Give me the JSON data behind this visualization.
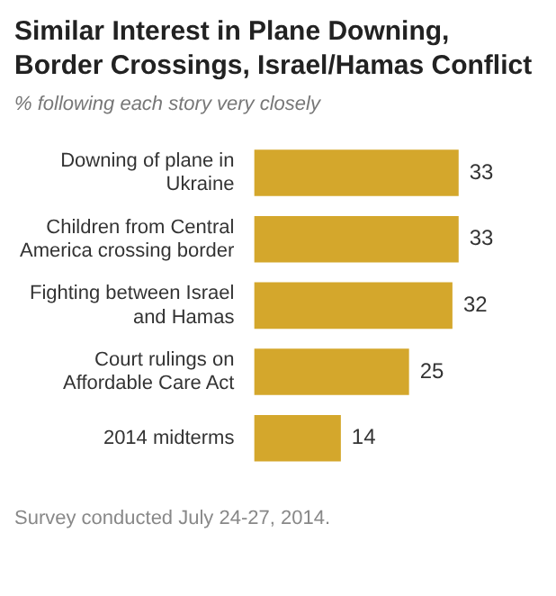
{
  "chart_data": {
    "type": "bar",
    "orientation": "horizontal",
    "title": "Similar Interest in Plane Downing, Border Crossings, Israel/Hamas Conflict",
    "subtitle": "% following each story very closely",
    "categories": [
      "Downing of plane in Ukraine",
      "Children from Central America crossing border",
      "Fighting between Israel and Hamas",
      "Court rulings on Affordable Care Act",
      "2014 midterms"
    ],
    "values": [
      33,
      33,
      32,
      25,
      14
    ],
    "color": "#d4a72c",
    "data_labels": true,
    "annotations": [
      "Survey conducted July 24-27, 2014."
    ]
  }
}
